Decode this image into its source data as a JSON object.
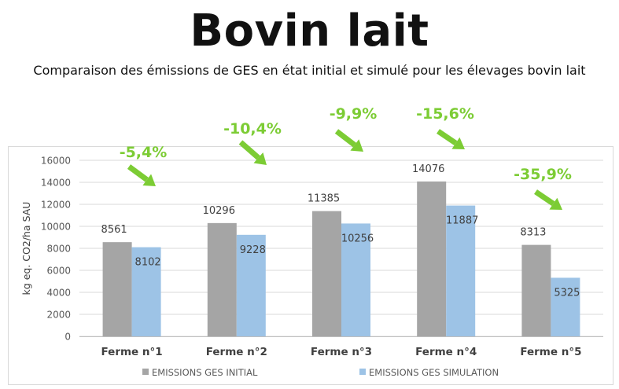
{
  "title": "Bovin lait",
  "subtitle": "Comparaison des émissions de GES en état initial et simulé pour les élevages bovin lait",
  "chart_data": {
    "type": "bar",
    "categories": [
      "Ferme n°1",
      "Ferme n°2",
      "Ferme n°3",
      "Ferme n°4",
      "Ferme n°5"
    ],
    "series": [
      {
        "name": "EMISSIONS GES INITIAL",
        "values": [
          8561,
          10296,
          11385,
          14076,
          8313
        ],
        "color": "#a5a5a5"
      },
      {
        "name": "EMISSIONS GES SIMULATION",
        "values": [
          8102,
          9228,
          10256,
          11887,
          5325
        ],
        "color": "#9dc3e6"
      }
    ],
    "annotations": [
      "-5,4%",
      "-10,4%",
      "-9,9%",
      "-15,6%",
      "-35,9%"
    ],
    "annotation_color": "#7ccc34",
    "ylabel": "kg eq. CO2/ha SAU",
    "xlabel": "",
    "ylim": [
      0,
      16000
    ],
    "yticks": [
      0,
      2000,
      4000,
      6000,
      8000,
      10000,
      12000,
      14000,
      16000
    ],
    "grid": true,
    "legend_position": "bottom"
  }
}
